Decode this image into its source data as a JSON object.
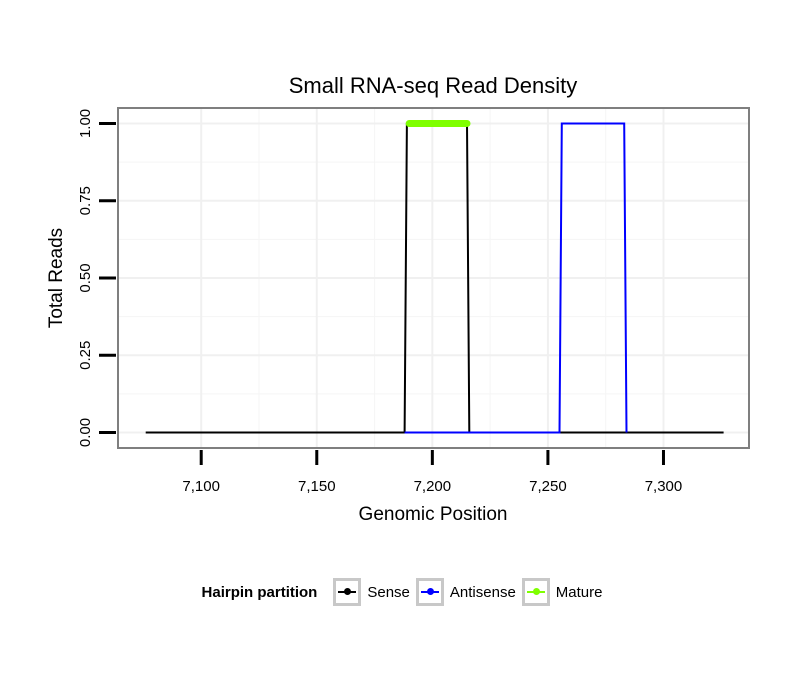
{
  "chart_data": {
    "type": "line",
    "title": "Small RNA-seq Read Density",
    "xlabel": "Genomic Position",
    "ylabel": "Total Reads",
    "xlim": [
      7064,
      7337
    ],
    "ylim": [
      -0.05,
      1.05
    ],
    "x_ticks": [
      {
        "value": 7100,
        "label": "7,100"
      },
      {
        "value": 7150,
        "label": "7,150"
      },
      {
        "value": 7200,
        "label": "7,200"
      },
      {
        "value": 7250,
        "label": "7,250"
      },
      {
        "value": 7300,
        "label": "7,300"
      }
    ],
    "y_ticks": [
      {
        "value": 0,
        "label": "0.00"
      },
      {
        "value": 0.25,
        "label": "0.25"
      },
      {
        "value": 0.5,
        "label": "0.50"
      },
      {
        "value": 0.75,
        "label": "0.75"
      },
      {
        "value": 1,
        "label": "1.00"
      }
    ],
    "series": [
      {
        "name": "Sense",
        "color": "#000000",
        "x": [
          7076,
          7188,
          7189,
          7215,
          7216,
          7326
        ],
        "y": [
          0,
          0,
          1,
          1,
          0,
          0
        ]
      },
      {
        "name": "Antisense",
        "color": "#0000ff",
        "x": [
          7188,
          7215,
          7255,
          7256,
          7283,
          7284
        ],
        "y": [
          0,
          0,
          0,
          1,
          1,
          0
        ]
      },
      {
        "name": "Mature",
        "color": "#7fff00",
        "x": [
          7190,
          7215
        ],
        "y": [
          1,
          1
        ]
      }
    ],
    "legend": {
      "title": "Hairpin partition",
      "position": "bottom",
      "entries": [
        "Sense",
        "Antisense",
        "Mature"
      ]
    }
  }
}
